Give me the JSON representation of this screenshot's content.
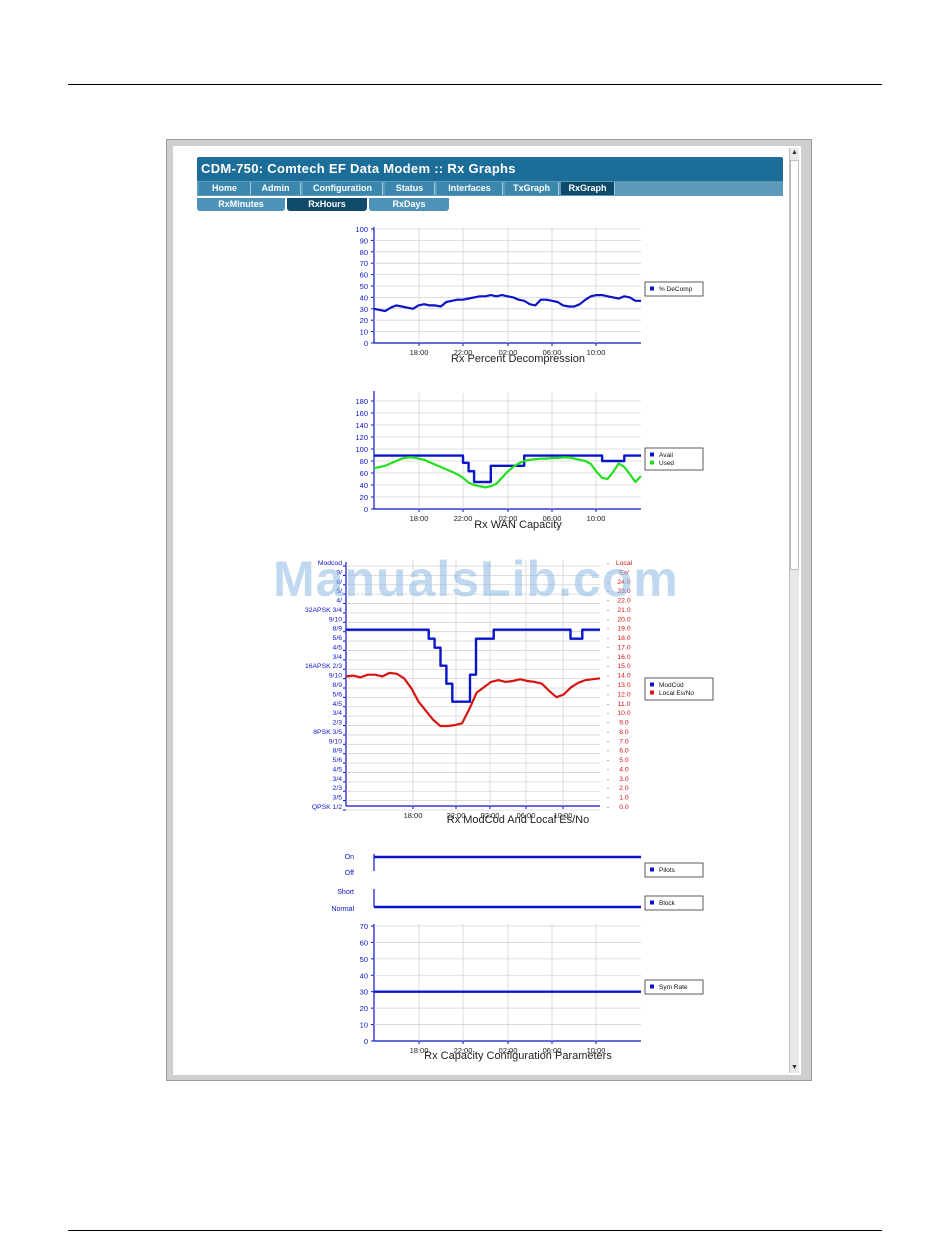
{
  "page": {
    "title": "CDM-750: Comtech EF Data Modem :: Rx Graphs",
    "tabs": [
      {
        "label": "Home",
        "active": false
      },
      {
        "label": "Admin",
        "active": false
      },
      {
        "label": "Configuration",
        "active": false
      },
      {
        "label": "Status",
        "active": false
      },
      {
        "label": "Interfaces",
        "active": false
      },
      {
        "label": "TxGraph",
        "active": false
      },
      {
        "label": "RxGraph",
        "active": true
      }
    ],
    "subtabs": [
      {
        "label": "RxMinutes",
        "active": false
      },
      {
        "label": "RxHours",
        "active": true
      },
      {
        "label": "RxDays",
        "active": false
      }
    ],
    "watermark": "ManualsLib.com"
  },
  "colors": {
    "blue": "#0a14c8",
    "green": "#22e01c",
    "red": "#d61414",
    "header": "#1c6e99",
    "tab": "#3b87ae",
    "tab_active": "#0f4a6a"
  },
  "chart_data": [
    {
      "type": "line",
      "title": "Rx Percent Decompression",
      "x_ticks": [
        "18:00",
        "22:00",
        "02:00",
        "06:00",
        "10:00"
      ],
      "y_ticks": [
        "0",
        "10",
        "20",
        "30",
        "40",
        "50",
        "60",
        "70",
        "80",
        "90",
        "100"
      ],
      "ylim": [
        0,
        100
      ],
      "legend": "right",
      "series": [
        {
          "name": "% DeComp",
          "color": "#0a14c8",
          "values": [
            30,
            29,
            28,
            31,
            33,
            32,
            31,
            30,
            33,
            34,
            33,
            33,
            32,
            36,
            37,
            38,
            38,
            39,
            40,
            41,
            41,
            42,
            41,
            42,
            41,
            40,
            38,
            37,
            34,
            33,
            38,
            38,
            37,
            36,
            33,
            32,
            32,
            34,
            38,
            41,
            42,
            42,
            41,
            40,
            39,
            41,
            40,
            37,
            37
          ]
        }
      ]
    },
    {
      "type": "line",
      "title": "Rx WAN Capacity",
      "x_ticks": [
        "18:00",
        "22:00",
        "02:00",
        "06:00",
        "10:00"
      ],
      "y_ticks": [
        "0",
        "20",
        "40",
        "60",
        "80",
        "100",
        "120",
        "140",
        "160",
        "180"
      ],
      "ylim": [
        0,
        190
      ],
      "legend": "right",
      "series": [
        {
          "name": "Avail",
          "color": "#0a14c8",
          "values": [
            89,
            89,
            89,
            89,
            89,
            89,
            89,
            89,
            89,
            89,
            89,
            89,
            89,
            89,
            89,
            89,
            77,
            63,
            45,
            45,
            45,
            72,
            72,
            72,
            72,
            72,
            72,
            89,
            89,
            89,
            89,
            89,
            89,
            89,
            89,
            89,
            89,
            89,
            89,
            89,
            89,
            80,
            80,
            80,
            80,
            89,
            89,
            89,
            89
          ]
        },
        {
          "name": "Used",
          "color": "#22e01c",
          "values": [
            68,
            70,
            72,
            76,
            80,
            84,
            86,
            86,
            84,
            82,
            78,
            74,
            70,
            66,
            62,
            58,
            52,
            44,
            40,
            38,
            36,
            38,
            42,
            52,
            62,
            70,
            76,
            80,
            82,
            83,
            84,
            84,
            85,
            85,
            86,
            86,
            84,
            82,
            80,
            75,
            62,
            52,
            50,
            62,
            76,
            70,
            58,
            45,
            55
          ]
        }
      ]
    },
    {
      "type": "line",
      "title": "Rx ModCod And Local Es/No",
      "x_ticks": [
        "18:00",
        "22:00",
        "02:00",
        "06:00",
        "10:00"
      ],
      "y_left_ticks": [
        "Modcod",
        "9/",
        "8/",
        "5/",
        "4/",
        "32APSK 3/4",
        "9/10",
        "8/9",
        "5/6",
        "4/5",
        "3/4",
        "16APSK 2/3",
        "9/10",
        "8/9",
        "5/6",
        "4/5",
        "3/4",
        "2/3",
        "8PSK 3/5",
        "9/10",
        "8/9",
        "5/6",
        "4/5",
        "3/4",
        "2/3",
        "3/5",
        "QPSK 1/2"
      ],
      "y_right_ticks": [
        "Local",
        "Es/",
        "24.0",
        "23.0",
        "22.0",
        "21.0",
        "20.0",
        "19.0",
        "18.0",
        "17.0",
        "16.0",
        "15.0",
        "14.0",
        "13.0",
        "12.0",
        "11.0",
        "10.0",
        "9.0",
        "8.0",
        "7.0",
        "6.0",
        "5.0",
        "4.0",
        "3.0",
        "2.0",
        "1.0",
        "0.0"
      ],
      "ylim": [
        0,
        24
      ],
      "legend": "right",
      "series": [
        {
          "name": "ModCod",
          "color": "#0a14c8",
          "values": [
            19,
            19,
            19,
            19,
            19,
            19,
            19,
            19,
            19,
            19,
            19,
            19,
            19,
            19,
            18,
            17,
            15,
            13,
            11,
            11,
            11,
            14,
            18,
            18,
            18,
            19,
            19,
            19,
            19,
            19,
            19,
            19,
            19,
            19,
            19,
            19,
            19,
            19,
            18,
            18,
            19,
            19,
            19,
            19
          ]
        },
        {
          "name": "Local Es/No",
          "color": "#d61414",
          "values": [
            13.8,
            13.9,
            13.7,
            14,
            14,
            13.8,
            14.2,
            14.1,
            13.6,
            12.5,
            11,
            10,
            9,
            8.3,
            8.3,
            8.4,
            8.6,
            10.2,
            12,
            12.6,
            13.2,
            13.4,
            13.2,
            13.3,
            13.5,
            13.3,
            13.2,
            13,
            12.2,
            11.5,
            11.8,
            12.6,
            13.1,
            13.4,
            13.5,
            13.6
          ]
        }
      ]
    },
    {
      "type": "line",
      "title": "",
      "y_ticks": [
        "On",
        "Off"
      ],
      "legend": "right",
      "series": [
        {
          "name": "Pilots",
          "color": "#0a14c8",
          "values": [
            1,
            1
          ]
        }
      ]
    },
    {
      "type": "line",
      "title": "",
      "y_ticks": [
        "Short",
        "Normal"
      ],
      "legend": "right",
      "series": [
        {
          "name": "Block",
          "color": "#0a14c8",
          "values": [
            0,
            0
          ]
        }
      ]
    },
    {
      "type": "line",
      "title": "Rx Capacity Configuration Parameters",
      "x_ticks": [
        "18:00",
        "22:00",
        "02:00",
        "06:00",
        "10:00"
      ],
      "y_ticks": [
        "0",
        "10",
        "20",
        "30",
        "40",
        "50",
        "60",
        "70"
      ],
      "ylim": [
        0,
        70
      ],
      "legend": "right",
      "series": [
        {
          "name": "Sym Rate",
          "color": "#0a14c8",
          "values": [
            30,
            30
          ]
        }
      ]
    }
  ]
}
